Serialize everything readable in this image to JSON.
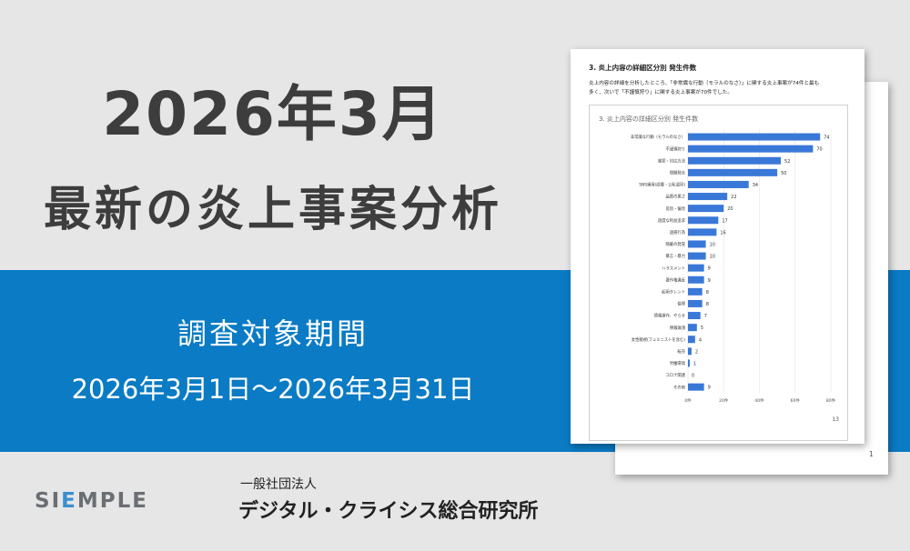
{
  "headline": {
    "line1": "2026年3月",
    "line2": "最新の炎上事案分析"
  },
  "period": {
    "label": "調査対象期間",
    "range": "2026年3月1日～2026年3月31日"
  },
  "doc_front": {
    "heading": "3. 炎上内容の詳細区分別 発生件数",
    "body_line1": "炎上内容の詳細を分析したところ、「非常識な行動（モラルのなさ）」に関する炎上事案が74件と最も",
    "body_line2": "多く、次いで「不謹慎狩り」に関する炎上事案が70件でした。",
    "page_number": "13"
  },
  "doc_back": {
    "page_number": "1"
  },
  "chart_data": {
    "type": "bar",
    "orientation": "horizontal",
    "title": "3. 炎上内容の詳細区分別 発生件数",
    "categories": [
      "非常識な行動（モラルのなさ）",
      "不謹慎狩り",
      "謝罪・対応方法",
      "問題発言",
      "SNS運用(誤爆・公私混同)",
      "品質の悪さ",
      "差別・偏見",
      "過度な利益追求",
      "迷惑行為",
      "隠蔽の発覚",
      "暴言・暴力",
      "ハラスメント",
      "著作権違反",
      "起用タレント",
      "倫理",
      "情報操作、やらせ",
      "情報漏洩",
      "女性軽視(フェミニストを含む)",
      "転売",
      "労働環境",
      "コロナ関連",
      "その他"
    ],
    "values": [
      74,
      70,
      52,
      50,
      34,
      22,
      20,
      17,
      16,
      10,
      10,
      9,
      9,
      8,
      8,
      7,
      5,
      4,
      2,
      1,
      0,
      9
    ],
    "xlim": [
      0,
      80
    ],
    "xticks": [
      "0件",
      "20件",
      "40件",
      "60件",
      "80件"
    ],
    "bar_color": "#3a78d8",
    "grid": true
  },
  "footer": {
    "logo_pre": "SI",
    "logo_e": "E",
    "logo_post": "MPLE",
    "org_type": "一般社団法人",
    "org_name": "デジタル・クライシス総合研究所"
  }
}
